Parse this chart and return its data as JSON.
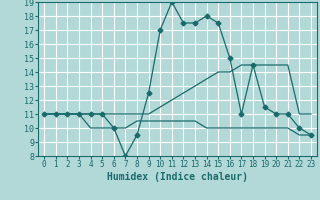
{
  "xlabel": "Humidex (Indice chaleur)",
  "ylabel": "",
  "xlim": [
    -0.5,
    23.5
  ],
  "ylim": [
    8,
    19
  ],
  "xticks": [
    0,
    1,
    2,
    3,
    4,
    5,
    6,
    7,
    8,
    9,
    10,
    11,
    12,
    13,
    14,
    15,
    16,
    17,
    18,
    19,
    20,
    21,
    22,
    23
  ],
  "yticks": [
    8,
    9,
    10,
    11,
    12,
    13,
    14,
    15,
    16,
    17,
    18,
    19
  ],
  "background_color": "#b2d8d8",
  "grid_color": "#ffffff",
  "line_color": "#1a6b6b",
  "series": [
    {
      "x": [
        0,
        1,
        2,
        3,
        4,
        5,
        6,
        7,
        8,
        9,
        10,
        11,
        12,
        13,
        14,
        15,
        16,
        17,
        18,
        19,
        20,
        21,
        22,
        23
      ],
      "y": [
        11,
        11,
        11,
        11,
        11,
        11,
        10,
        8.0,
        9.5,
        12.5,
        17,
        19,
        17.5,
        17.5,
        18,
        17.5,
        15,
        11,
        14.5,
        11.5,
        11,
        11,
        10,
        9.5
      ],
      "marker": "D",
      "markersize": 2.5
    },
    {
      "x": [
        0,
        1,
        2,
        3,
        4,
        5,
        6,
        7,
        8,
        9,
        10,
        11,
        12,
        13,
        14,
        15,
        16,
        17,
        18,
        19,
        20,
        21,
        22,
        23
      ],
      "y": [
        11,
        11,
        11,
        11,
        11,
        11,
        11,
        11,
        11,
        11,
        11.5,
        12,
        12.5,
        13,
        13.5,
        14,
        14,
        14.5,
        14.5,
        14.5,
        14.5,
        14.5,
        11,
        11
      ],
      "marker": null,
      "markersize": 0
    },
    {
      "x": [
        0,
        1,
        2,
        3,
        4,
        5,
        6,
        7,
        8,
        9,
        10,
        11,
        12,
        13,
        14,
        15,
        16,
        17,
        18,
        19,
        20,
        21,
        22,
        23
      ],
      "y": [
        11,
        11,
        11,
        11,
        10,
        10,
        10,
        10,
        10.5,
        10.5,
        10.5,
        10.5,
        10.5,
        10.5,
        10,
        10,
        10,
        10,
        10,
        10,
        10,
        10,
        9.5,
        9.5
      ],
      "marker": null,
      "markersize": 0
    }
  ]
}
